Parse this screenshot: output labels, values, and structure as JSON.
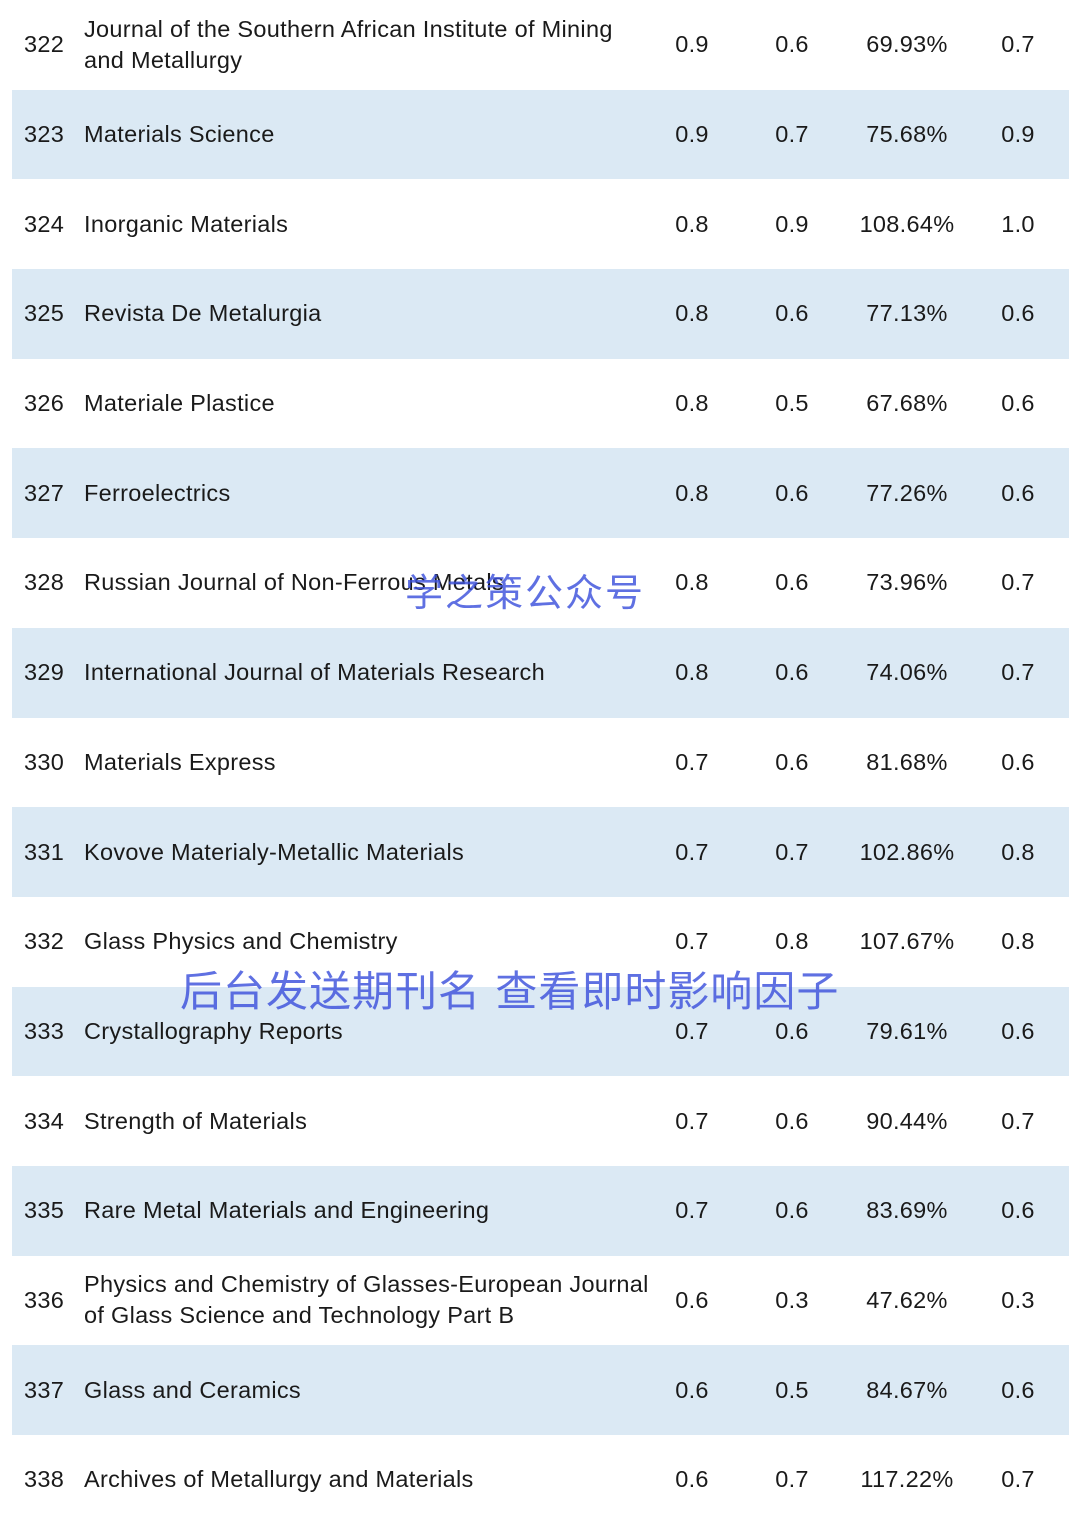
{
  "rows": [
    {
      "rank": "322",
      "name": "Journal of the Southern African Institute of Mining and Metallurgy",
      "v1": "0.9",
      "v2": "0.6",
      "v3": "69.93%",
      "v4": "0.7"
    },
    {
      "rank": "323",
      "name": "Materials Science",
      "v1": "0.9",
      "v2": "0.7",
      "v3": "75.68%",
      "v4": "0.9"
    },
    {
      "rank": "324",
      "name": "Inorganic Materials",
      "v1": "0.8",
      "v2": "0.9",
      "v3": "108.64%",
      "v4": "1.0"
    },
    {
      "rank": "325",
      "name": "Revista De Metalurgia",
      "v1": "0.8",
      "v2": "0.6",
      "v3": "77.13%",
      "v4": "0.6"
    },
    {
      "rank": "326",
      "name": "Materiale Plastice",
      "v1": "0.8",
      "v2": "0.5",
      "v3": "67.68%",
      "v4": "0.6"
    },
    {
      "rank": "327",
      "name": "Ferroelectrics",
      "v1": "0.8",
      "v2": "0.6",
      "v3": "77.26%",
      "v4": "0.6"
    },
    {
      "rank": "328",
      "name": "Russian Journal of Non-Ferrous Metals",
      "v1": "0.8",
      "v2": "0.6",
      "v3": "73.96%",
      "v4": "0.7"
    },
    {
      "rank": "329",
      "name": "International Journal of Materials Research",
      "v1": "0.8",
      "v2": "0.6",
      "v3": "74.06%",
      "v4": "0.7"
    },
    {
      "rank": "330",
      "name": "Materials Express",
      "v1": "0.7",
      "v2": "0.6",
      "v3": "81.68%",
      "v4": "0.6"
    },
    {
      "rank": "331",
      "name": "Kovove Materialy-Metallic Materials",
      "v1": "0.7",
      "v2": "0.7",
      "v3": "102.86%",
      "v4": "0.8"
    },
    {
      "rank": "332",
      "name": "Glass Physics and Chemistry",
      "v1": "0.7",
      "v2": "0.8",
      "v3": "107.67%",
      "v4": "0.8"
    },
    {
      "rank": "333",
      "name": "Crystallography Reports",
      "v1": "0.7",
      "v2": "0.6",
      "v3": "79.61%",
      "v4": "0.6"
    },
    {
      "rank": "334",
      "name": "Strength of Materials",
      "v1": "0.7",
      "v2": "0.6",
      "v3": "90.44%",
      "v4": "0.7"
    },
    {
      "rank": "335",
      "name": "Rare Metal Materials and Engineering",
      "v1": "0.7",
      "v2": "0.6",
      "v3": "83.69%",
      "v4": "0.6"
    },
    {
      "rank": "336",
      "name": "Physics and Chemistry of Glasses-European Journal of Glass Science and Technology Part B",
      "v1": "0.6",
      "v2": "0.3",
      "v3": "47.62%",
      "v4": "0.3"
    },
    {
      "rank": "337",
      "name": "Glass and Ceramics",
      "v1": "0.6",
      "v2": "0.5",
      "v3": "84.67%",
      "v4": "0.6"
    },
    {
      "rank": "338",
      "name": "Archives of Metallurgy and Materials",
      "v1": "0.6",
      "v2": "0.7",
      "v3": "117.22%",
      "v4": "0.7"
    }
  ],
  "watermarks": {
    "account": "学之策公众号",
    "hint": "后台发送期刊名 查看即时影响因子"
  }
}
